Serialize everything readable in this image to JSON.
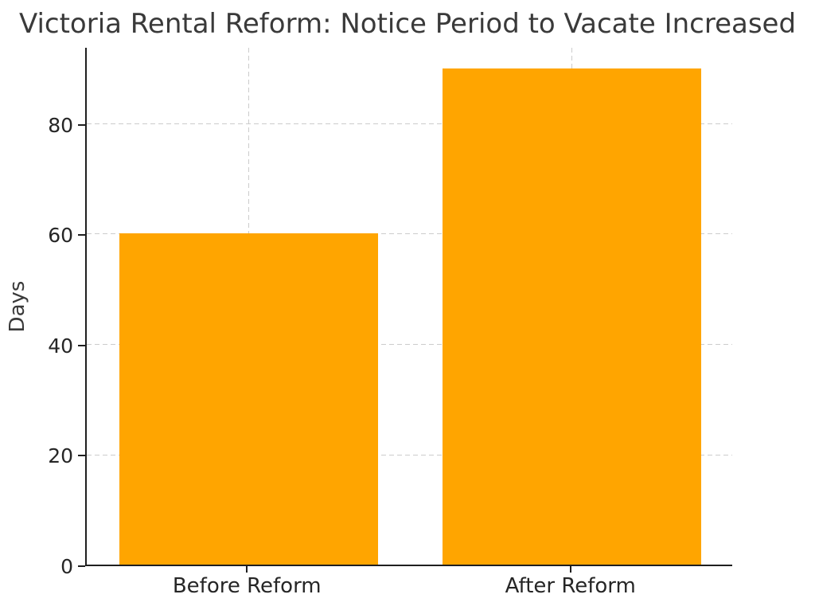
{
  "chart_data": {
    "type": "bar",
    "title": "Victoria Rental Reform: Notice Period to Vacate Increased",
    "categories": [
      "Before Reform",
      "After Reform"
    ],
    "values": [
      60,
      90
    ],
    "xlabel": "",
    "ylabel": "Days",
    "yticks": [
      0,
      20,
      40,
      60,
      80
    ],
    "ylim": [
      0,
      94
    ],
    "bar_color": "#FFA500",
    "bar_width_fraction": 0.4,
    "grid": true,
    "grid_style": "dashed",
    "grid_color": "#cccccc",
    "axis_color": "#1f1f1f",
    "text_color": "#3a3a3a",
    "legend": null
  }
}
